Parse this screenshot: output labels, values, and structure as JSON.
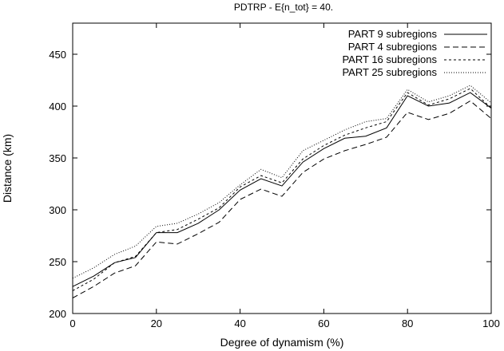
{
  "chart_data": {
    "type": "line",
    "title": "PDTRP - E{n_tot} = 40.",
    "xlabel": "Degree of dynamism (%)",
    "ylabel": "Distance (km)",
    "xlim": [
      0,
      100
    ],
    "ylim": [
      200,
      480
    ],
    "xticks": [
      0,
      20,
      40,
      60,
      80,
      100
    ],
    "yticks": [
      200,
      250,
      300,
      350,
      400,
      450
    ],
    "x": [
      0,
      5,
      10,
      15,
      20,
      25,
      30,
      35,
      40,
      45,
      50,
      55,
      60,
      65,
      70,
      75,
      80,
      85,
      90,
      95,
      100
    ],
    "legend_position": "top-right",
    "grid": false,
    "series": [
      {
        "name": "PART 9 subregions",
        "style": "solid",
        "values": [
          226,
          236,
          249,
          254,
          278,
          278,
          287,
          300,
          319,
          330,
          323,
          346,
          359,
          369,
          371,
          379,
          410,
          400,
          403,
          413,
          398
        ]
      },
      {
        "name": "PART 4 subregions",
        "style": "dashed",
        "values": [
          215,
          226,
          239,
          246,
          269,
          267,
          277,
          288,
          310,
          320,
          313,
          336,
          349,
          357,
          363,
          370,
          394,
          387,
          393,
          405,
          388
        ]
      },
      {
        "name": "PART 16 subregions",
        "style": "short-dashed",
        "values": [
          222,
          233,
          249,
          255,
          278,
          281,
          291,
          302,
          322,
          333,
          326,
          349,
          362,
          372,
          379,
          385,
          413,
          401,
          407,
          417,
          398
        ]
      },
      {
        "name": "PART 25 subregions",
        "style": "dotted",
        "values": [
          234,
          244,
          257,
          265,
          284,
          287,
          296,
          307,
          324,
          339,
          331,
          357,
          367,
          377,
          385,
          388,
          416,
          404,
          410,
          420,
          403
        ]
      }
    ]
  }
}
